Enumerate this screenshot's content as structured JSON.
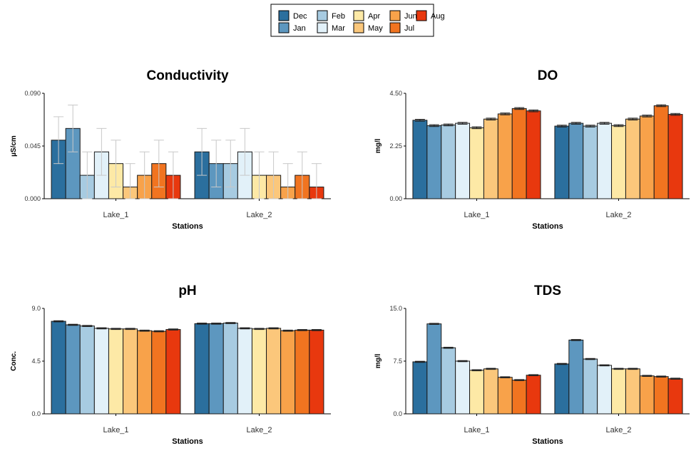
{
  "colors": {
    "Dec": "#2b6f9e",
    "Jan": "#5d97bf",
    "Feb": "#a7cbe1",
    "Mar": "#e2f1f9",
    "Apr": "#fde9a6",
    "May": "#fbc77b",
    "Jun": "#f8a24a",
    "Jul": "#f17420",
    "Aug": "#e8380e"
  },
  "legend": {
    "order": [
      "Dec",
      "Jan",
      "Feb",
      "Mar",
      "Apr",
      "May",
      "Jun",
      "Jul",
      "Aug"
    ]
  },
  "chart_data": [
    {
      "type": "bar",
      "title": "Conductivity",
      "xlabel": "Stations",
      "ylabel": "µS/cm",
      "categories": [
        "Lake_1",
        "Lake_2"
      ],
      "yticks": [
        "0.000",
        "0.045",
        "0.090"
      ],
      "ylim": [
        0,
        0.09
      ],
      "error_bars": "light grey",
      "series": [
        {
          "name": "Dec",
          "values": [
            0.05,
            0.04
          ],
          "err": [
            0.02,
            0.02
          ]
        },
        {
          "name": "Jan",
          "values": [
            0.06,
            0.03
          ],
          "err": [
            0.02,
            0.02
          ]
        },
        {
          "name": "Feb",
          "values": [
            0.02,
            0.03
          ],
          "err": [
            0.02,
            0.02
          ]
        },
        {
          "name": "Mar",
          "values": [
            0.04,
            0.04
          ],
          "err": [
            0.02,
            0.02
          ]
        },
        {
          "name": "Apr",
          "values": [
            0.03,
            0.02
          ],
          "err": [
            0.02,
            0.02
          ]
        },
        {
          "name": "May",
          "values": [
            0.01,
            0.02
          ],
          "err": [
            0.02,
            0.02
          ]
        },
        {
          "name": "Jun",
          "values": [
            0.02,
            0.01
          ],
          "err": [
            0.02,
            0.02
          ]
        },
        {
          "name": "Jul",
          "values": [
            0.03,
            0.02
          ],
          "err": [
            0.02,
            0.02
          ]
        },
        {
          "name": "Aug",
          "values": [
            0.02,
            0.01
          ],
          "err": [
            0.02,
            0.02
          ]
        }
      ]
    },
    {
      "type": "bar",
      "title": "DO",
      "xlabel": "Stations",
      "ylabel": "mg/l",
      "categories": [
        "Lake_1",
        "Lake_2"
      ],
      "yticks": [
        "0.00",
        "2.25",
        "4.50"
      ],
      "ylim": [
        0,
        4.5
      ],
      "error_bars": "dark",
      "series": [
        {
          "name": "Dec",
          "values": [
            3.35,
            3.1
          ],
          "err": [
            0.04,
            0.04
          ]
        },
        {
          "name": "Jan",
          "values": [
            3.12,
            3.22
          ],
          "err": [
            0.04,
            0.04
          ]
        },
        {
          "name": "Feb",
          "values": [
            3.15,
            3.1
          ],
          "err": [
            0.04,
            0.04
          ]
        },
        {
          "name": "Mar",
          "values": [
            3.22,
            3.22
          ],
          "err": [
            0.04,
            0.04
          ]
        },
        {
          "name": "Apr",
          "values": [
            3.03,
            3.12
          ],
          "err": [
            0.04,
            0.04
          ]
        },
        {
          "name": "May",
          "values": [
            3.4,
            3.4
          ],
          "err": [
            0.04,
            0.04
          ]
        },
        {
          "name": "Jun",
          "values": [
            3.62,
            3.53
          ],
          "err": [
            0.04,
            0.04
          ]
        },
        {
          "name": "Jul",
          "values": [
            3.85,
            3.97
          ],
          "err": [
            0.04,
            0.04
          ]
        },
        {
          "name": "Aug",
          "values": [
            3.75,
            3.6
          ],
          "err": [
            0.04,
            0.04
          ]
        }
      ]
    },
    {
      "type": "bar",
      "title": "pH",
      "xlabel": "Stations",
      "ylabel": "Conc.",
      "categories": [
        "Lake_1",
        "Lake_2"
      ],
      "yticks": [
        "0.0",
        "4.5",
        "9.0"
      ],
      "ylim": [
        0,
        9
      ],
      "error_bars": "dark",
      "series": [
        {
          "name": "Dec",
          "values": [
            7.9,
            7.7
          ],
          "err": [
            0.05,
            0.05
          ]
        },
        {
          "name": "Jan",
          "values": [
            7.6,
            7.7
          ],
          "err": [
            0.05,
            0.05
          ]
        },
        {
          "name": "Feb",
          "values": [
            7.5,
            7.75
          ],
          "err": [
            0.05,
            0.05
          ]
        },
        {
          "name": "Mar",
          "values": [
            7.3,
            7.3
          ],
          "err": [
            0.05,
            0.05
          ]
        },
        {
          "name": "Apr",
          "values": [
            7.25,
            7.25
          ],
          "err": [
            0.05,
            0.05
          ]
        },
        {
          "name": "May",
          "values": [
            7.25,
            7.3
          ],
          "err": [
            0.05,
            0.05
          ]
        },
        {
          "name": "Jun",
          "values": [
            7.1,
            7.1
          ],
          "err": [
            0.05,
            0.05
          ]
        },
        {
          "name": "Jul",
          "values": [
            7.05,
            7.15
          ],
          "err": [
            0.05,
            0.05
          ]
        },
        {
          "name": "Aug",
          "values": [
            7.2,
            7.15
          ],
          "err": [
            0.05,
            0.05
          ]
        }
      ]
    },
    {
      "type": "bar",
      "title": "TDS",
      "xlabel": "Stations",
      "ylabel": "mg/l",
      "categories": [
        "Lake_1",
        "Lake_2"
      ],
      "yticks": [
        "0.0",
        "7.5",
        "15.0"
      ],
      "ylim": [
        0,
        15
      ],
      "error_bars": "dark",
      "series": [
        {
          "name": "Dec",
          "values": [
            7.4,
            7.1
          ],
          "err": [
            0.08,
            0.08
          ]
        },
        {
          "name": "Jan",
          "values": [
            12.8,
            10.5
          ],
          "err": [
            0.08,
            0.08
          ]
        },
        {
          "name": "Feb",
          "values": [
            9.4,
            7.8
          ],
          "err": [
            0.08,
            0.08
          ]
        },
        {
          "name": "Mar",
          "values": [
            7.5,
            6.9
          ],
          "err": [
            0.08,
            0.08
          ]
        },
        {
          "name": "Apr",
          "values": [
            6.2,
            6.4
          ],
          "err": [
            0.08,
            0.08
          ]
        },
        {
          "name": "May",
          "values": [
            6.4,
            6.4
          ],
          "err": [
            0.08,
            0.08
          ]
        },
        {
          "name": "Jun",
          "values": [
            5.2,
            5.4
          ],
          "err": [
            0.08,
            0.08
          ]
        },
        {
          "name": "Jul",
          "values": [
            4.8,
            5.3
          ],
          "err": [
            0.08,
            0.08
          ]
        },
        {
          "name": "Aug",
          "values": [
            5.5,
            5.0
          ],
          "err": [
            0.08,
            0.08
          ]
        }
      ]
    }
  ]
}
